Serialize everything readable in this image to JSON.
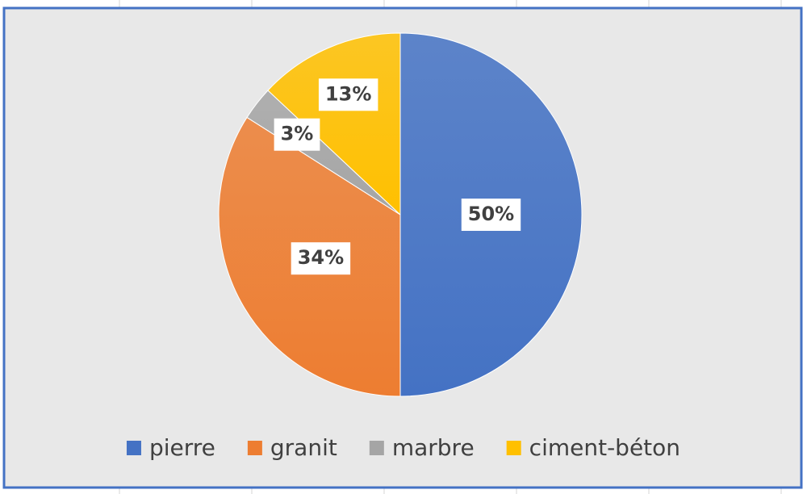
{
  "chart_data": {
    "type": "pie",
    "categories": [
      "pierre",
      "granit",
      "marbre",
      "ciment-béton"
    ],
    "values": [
      50,
      34,
      3,
      13
    ],
    "value_labels": [
      "50%",
      "34%",
      "3%",
      "13%"
    ],
    "colors": [
      "#4472c4",
      "#ed7d31",
      "#a5a5a5",
      "#ffc000"
    ],
    "legend": "bottom"
  }
}
